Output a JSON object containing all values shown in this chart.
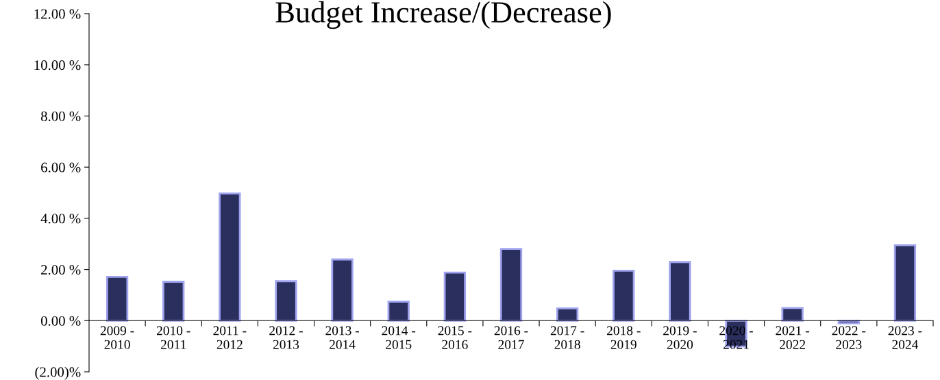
{
  "chart_data": {
    "type": "bar",
    "title": "Budget Increase/(Decrease)",
    "categories": [
      "2009 -\n2010",
      "2010 -\n2011",
      "2011 -\n2012",
      "2012 -\n2013",
      "2013 -\n2014",
      "2014 -\n2015",
      "2015 -\n2016",
      "2016 -\n2017",
      "2017 -\n2018",
      "2018 -\n2019",
      "2019 -\n2020",
      "2020 -\n2021",
      "2021 -\n2022",
      "2022 -\n2023",
      "2023 -\n2024"
    ],
    "values": [
      1.71,
      1.52,
      4.97,
      1.54,
      2.39,
      0.74,
      1.88,
      2.8,
      0.48,
      1.95,
      2.29,
      -1.01,
      0.49,
      -0.1,
      2.95
    ],
    "color": "#2b2f5e",
    "ylim": [
      -2,
      12
    ],
    "yticks": [
      {
        "value": -2,
        "label": "(2.00)%"
      },
      {
        "value": 0,
        "label": "0.00 %"
      },
      {
        "value": 2,
        "label": "2.00 %"
      },
      {
        "value": 4,
        "label": "4.00 %"
      },
      {
        "value": 6,
        "label": "6.00 %"
      },
      {
        "value": 8,
        "label": "8.00 %"
      },
      {
        "value": 10,
        "label": "10.00 %"
      },
      {
        "value": 12,
        "label": "12.00 %"
      }
    ],
    "grid": false
  }
}
